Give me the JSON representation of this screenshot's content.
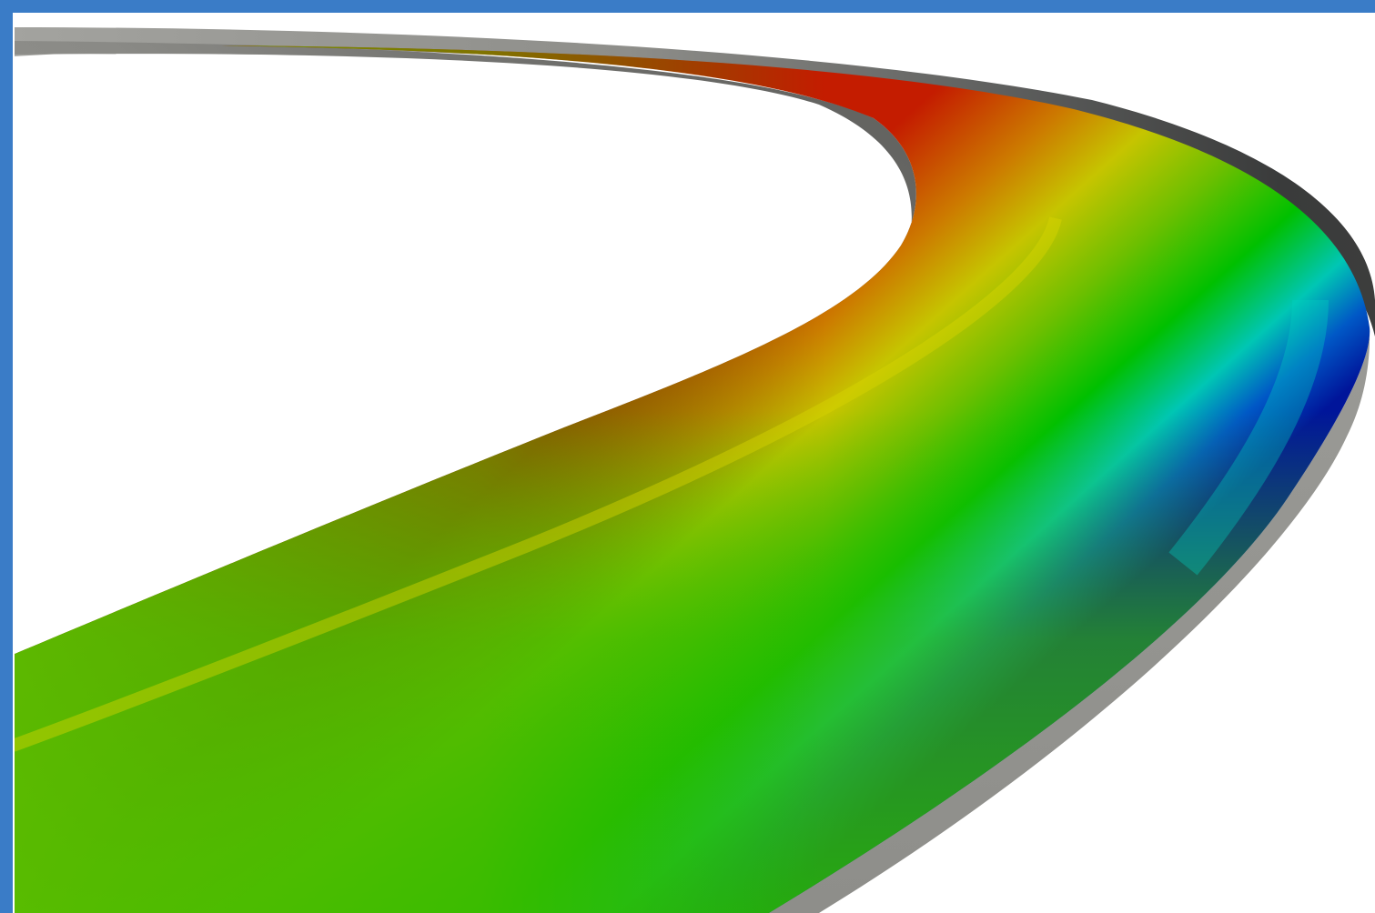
{
  "viewport": {
    "frame_color": "#3a7cc7",
    "background": "#ffffff"
  },
  "surface": {
    "wall_colors": {
      "light": "#9a9a96",
      "mid": "#8b8b87",
      "dark": "#3a3b3b"
    },
    "colormap": {
      "red": "#c02000",
      "orange": "#d07000",
      "yellow": "#c8c800",
      "yellow_green": "#70c000",
      "green": "#00c000",
      "cyan": "#00c8c0",
      "blue": "#0050c8",
      "dark_blue": "#00159a"
    }
  }
}
